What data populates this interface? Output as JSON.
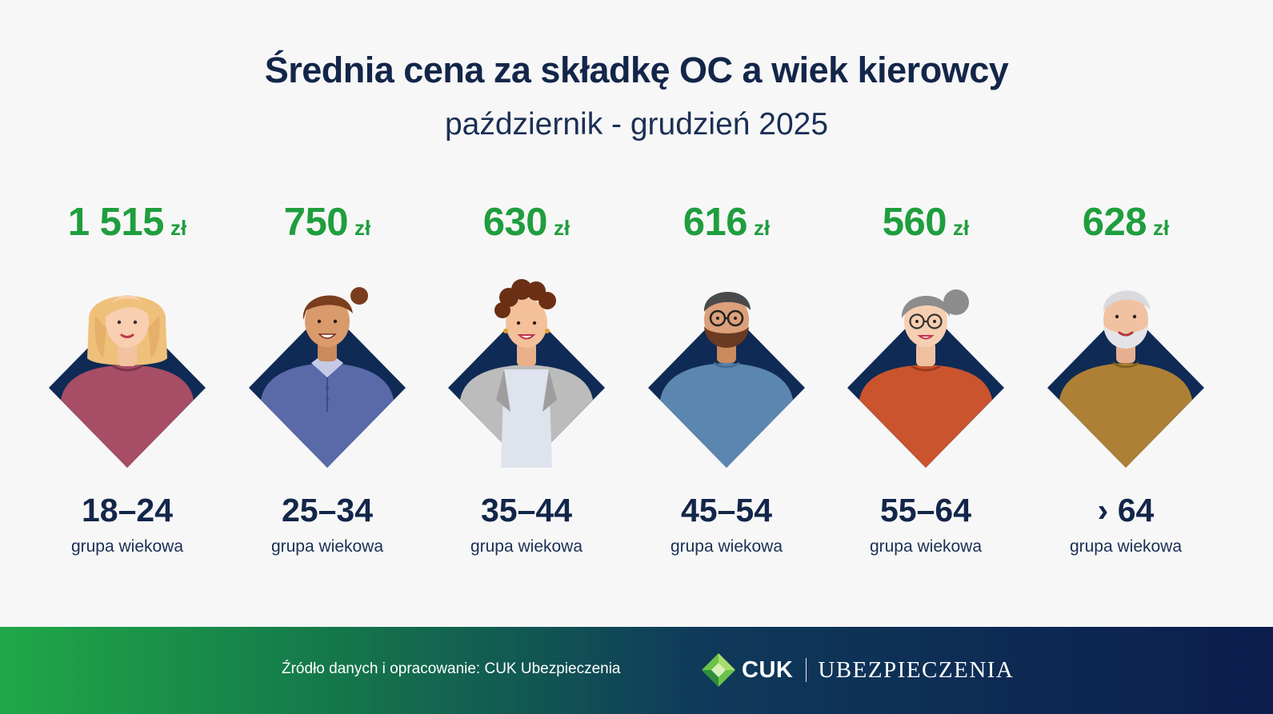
{
  "title": "Średnia cena za składkę OC a wiek kierowcy",
  "subtitle": "październik - grudzień 2025",
  "currency": "zł",
  "age_caption": "grupa wiekowa",
  "groups": [
    {
      "price": "1 515",
      "age": "18–24",
      "avatar": "young-woman-avatar",
      "shirt_color": "#a84d66"
    },
    {
      "price": "750",
      "age": "25–34",
      "avatar": "young-man-avatar",
      "shirt_color": "#5a69a8"
    },
    {
      "price": "630",
      "age": "35–44",
      "avatar": "woman-in-blazer-avatar",
      "shirt_color": "#bcbcbc"
    },
    {
      "price": "616",
      "age": "45–54",
      "avatar": "bearded-man-avatar",
      "shirt_color": "#5b86b0"
    },
    {
      "price": "560",
      "age": "55–64",
      "avatar": "older-woman-avatar",
      "shirt_color": "#c9542e"
    },
    {
      "price": "628",
      "age": "› 64",
      "avatar": "senior-man-avatar",
      "shirt_color": "#ad8035"
    }
  ],
  "footer": {
    "source": "Źródło danych i opracowanie: CUK Ubezpieczenia",
    "logo_cuk": "CUK",
    "logo_name": "UBEZPIECZENIA"
  },
  "colors": {
    "accent_green": "#1f9e3e",
    "navy": "#13264a",
    "diamond": "#0f2a55"
  }
}
